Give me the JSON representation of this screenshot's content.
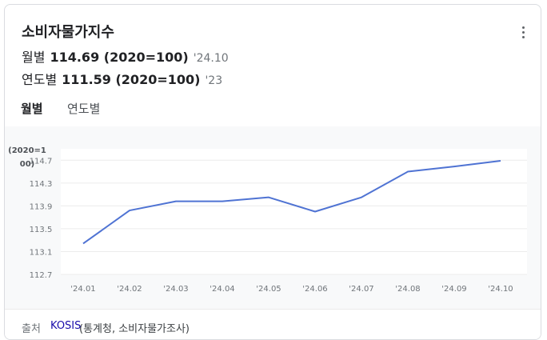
{
  "card": {
    "title": "소비자물가지수",
    "monthly": {
      "label": "월별",
      "value": "114.69 (2020=100)",
      "period": "'24.10"
    },
    "yearly": {
      "label": "연도별",
      "value": "111.59 (2020=100)",
      "period": "'23"
    }
  },
  "tabs": [
    {
      "label": "월별",
      "active": true
    },
    {
      "label": "연도별",
      "active": false
    }
  ],
  "chart_data": {
    "type": "line",
    "ylabel_lines": [
      "(2020=1",
      "00)"
    ],
    "categories": [
      "'24.01",
      "'24.02",
      "'24.03",
      "'24.04",
      "'24.05",
      "'24.06",
      "'24.07",
      "'24.08",
      "'24.09",
      "'24.10"
    ],
    "yticks": [
      "114.7",
      "114.3",
      "113.9",
      "113.5",
      "113.1",
      "112.7"
    ],
    "ylim": [
      112.7,
      114.9
    ],
    "series": [
      {
        "values": [
          113.24,
          113.82,
          113.98,
          113.98,
          114.05,
          113.8,
          114.05,
          114.5,
          114.59,
          114.69
        ]
      }
    ],
    "line_color": "#4f73d3",
    "grid": true
  },
  "footer": {
    "source_label": "출처",
    "source_link": "KOSIS",
    "source_note": "(통계청, 소비자물가조사)"
  }
}
